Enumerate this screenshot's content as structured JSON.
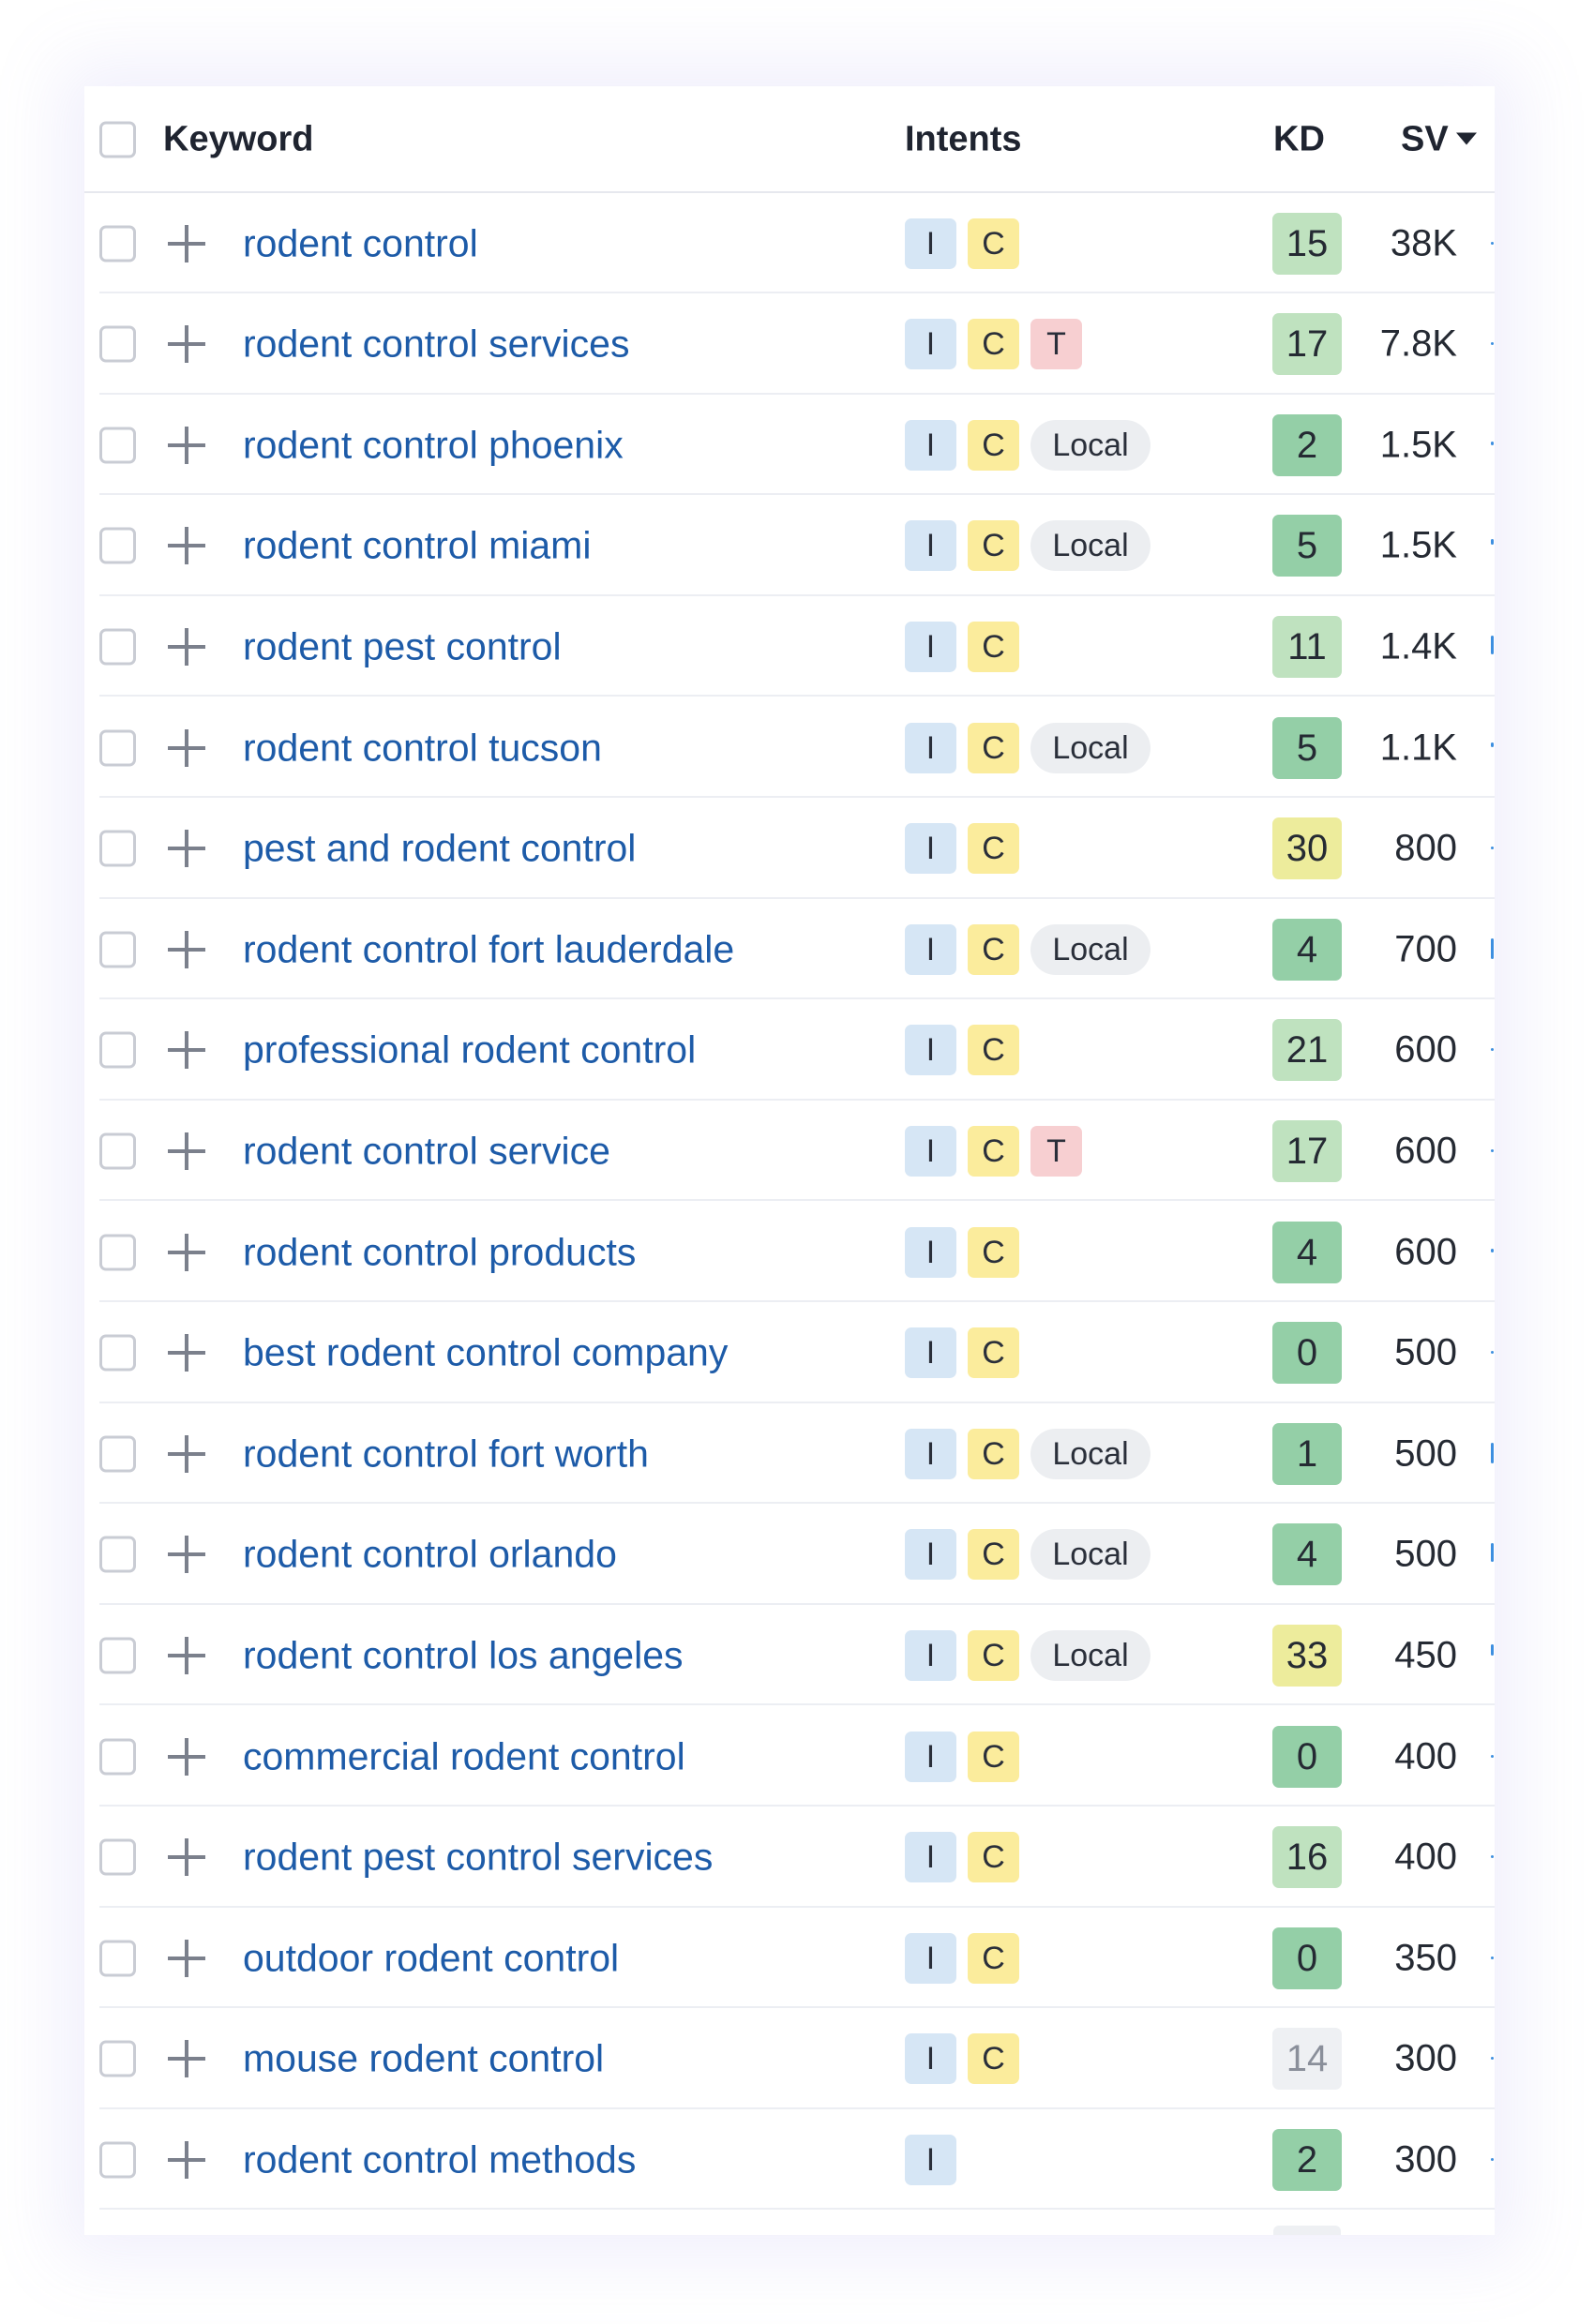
{
  "header": {
    "keyword": "Keyword",
    "intents": "Intents",
    "kd": "KD",
    "sv": "SV"
  },
  "colors": {
    "kd_very_easy": "#94cfa7",
    "kd_easy": "#bfe2bf",
    "kd_possible": "#edec9c",
    "kd_unknown": "#eef0f3",
    "intent_informational": "#d6e6f5",
    "intent_commercial": "#fbec9c",
    "intent_transactional": "#f7cfd1",
    "local": "#eceef1",
    "keyword_link": "#1d5ba8"
  },
  "rows": [
    {
      "keyword": "rodent control",
      "intents": [
        "I",
        "C"
      ],
      "kd": "15",
      "kd_level": "easy",
      "sv": "38K"
    },
    {
      "keyword": "rodent control services",
      "intents": [
        "I",
        "C",
        "T"
      ],
      "kd": "17",
      "kd_level": "easy",
      "sv": "7.8K"
    },
    {
      "keyword": "rodent control phoenix",
      "intents": [
        "I",
        "C",
        "Local"
      ],
      "kd": "2",
      "kd_level": "very_easy",
      "sv": "1.5K"
    },
    {
      "keyword": "rodent control miami",
      "intents": [
        "I",
        "C",
        "Local"
      ],
      "kd": "5",
      "kd_level": "very_easy",
      "sv": "1.5K"
    },
    {
      "keyword": "rodent pest control",
      "intents": [
        "I",
        "C"
      ],
      "kd": "11",
      "kd_level": "easy",
      "sv": "1.4K"
    },
    {
      "keyword": "rodent control tucson",
      "intents": [
        "I",
        "C",
        "Local"
      ],
      "kd": "5",
      "kd_level": "very_easy",
      "sv": "1.1K"
    },
    {
      "keyword": "pest and rodent control",
      "intents": [
        "I",
        "C"
      ],
      "kd": "30",
      "kd_level": "possible",
      "sv": "800"
    },
    {
      "keyword": "rodent control fort lauderdale",
      "intents": [
        "I",
        "C",
        "Local"
      ],
      "kd": "4",
      "kd_level": "very_easy",
      "sv": "700"
    },
    {
      "keyword": "professional rodent control",
      "intents": [
        "I",
        "C"
      ],
      "kd": "21",
      "kd_level": "easy",
      "sv": "600"
    },
    {
      "keyword": "rodent control service",
      "intents": [
        "I",
        "C",
        "T"
      ],
      "kd": "17",
      "kd_level": "easy",
      "sv": "600"
    },
    {
      "keyword": "rodent control products",
      "intents": [
        "I",
        "C"
      ],
      "kd": "4",
      "kd_level": "very_easy",
      "sv": "600"
    },
    {
      "keyword": "best rodent control company",
      "intents": [
        "I",
        "C"
      ],
      "kd": "0",
      "kd_level": "very_easy",
      "sv": "500"
    },
    {
      "keyword": "rodent control fort worth",
      "intents": [
        "I",
        "C",
        "Local"
      ],
      "kd": "1",
      "kd_level": "very_easy",
      "sv": "500"
    },
    {
      "keyword": "rodent control orlando",
      "intents": [
        "I",
        "C",
        "Local"
      ],
      "kd": "4",
      "kd_level": "very_easy",
      "sv": "500"
    },
    {
      "keyword": "rodent control los angeles",
      "intents": [
        "I",
        "C",
        "Local"
      ],
      "kd": "33",
      "kd_level": "possible",
      "sv": "450"
    },
    {
      "keyword": "commercial rodent control",
      "intents": [
        "I",
        "C"
      ],
      "kd": "0",
      "kd_level": "very_easy",
      "sv": "400"
    },
    {
      "keyword": "rodent pest control services",
      "intents": [
        "I",
        "C"
      ],
      "kd": "16",
      "kd_level": "easy",
      "sv": "400"
    },
    {
      "keyword": "outdoor rodent control",
      "intents": [
        "I",
        "C"
      ],
      "kd": "0",
      "kd_level": "very_easy",
      "sv": "350"
    },
    {
      "keyword": "mouse rodent control",
      "intents": [
        "I",
        "C"
      ],
      "kd": "14",
      "kd_level": "unknown",
      "sv": "300"
    },
    {
      "keyword": "rodent control methods",
      "intents": [
        "I"
      ],
      "kd": "2",
      "kd_level": "very_easy",
      "sv": "300"
    }
  ]
}
